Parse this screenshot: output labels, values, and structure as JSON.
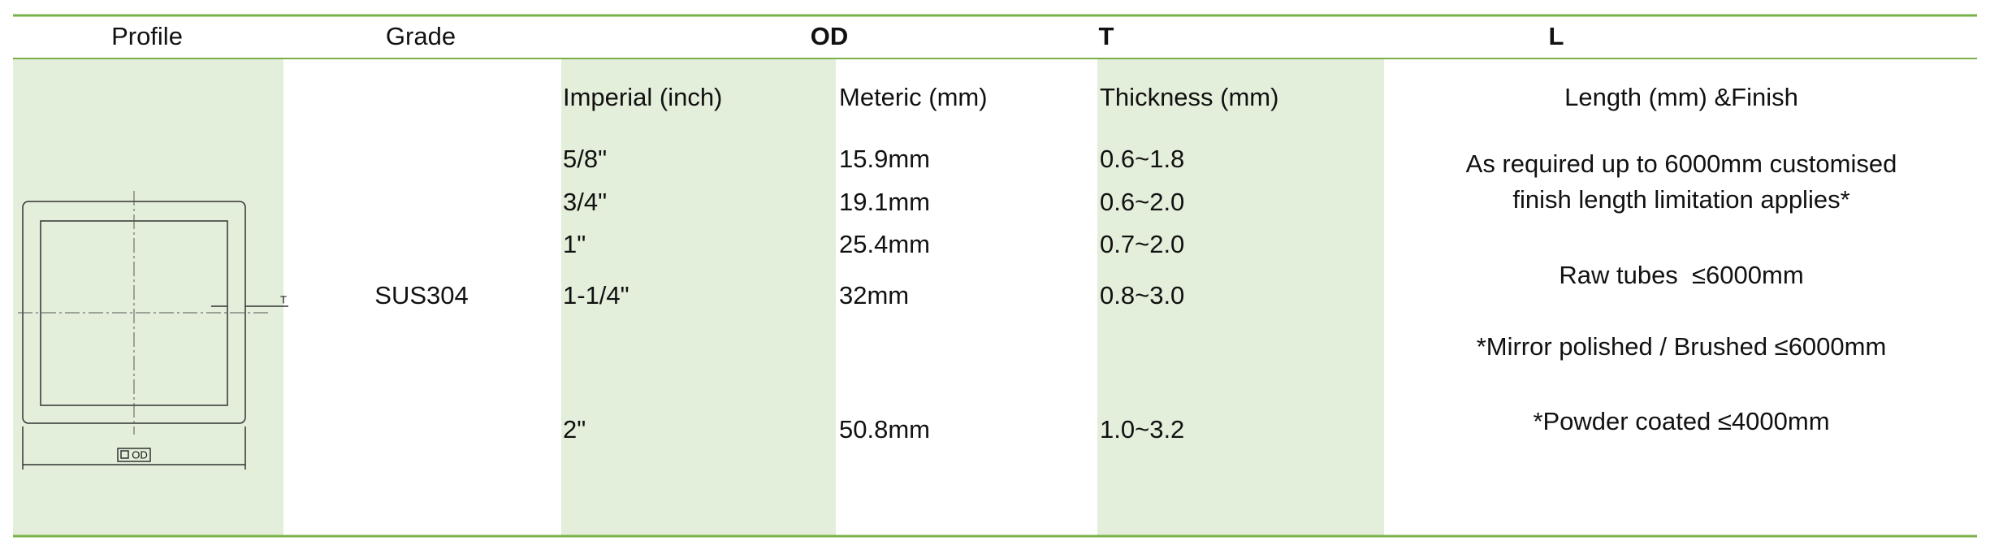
{
  "header": {
    "profile": "Profile",
    "grade": "Grade",
    "od": "OD",
    "t": "T",
    "l": "L"
  },
  "profile_drawing": {
    "t_label": "T",
    "od_label": "OD"
  },
  "grade": "SUS304",
  "subheaders": [
    "Imperial (inch)",
    "Meteric (mm)",
    "Thickness (mm)",
    "Length (mm) &Finish"
  ],
  "rows": [
    [
      "5/8\"",
      "15.9mm",
      "0.6~1.8"
    ],
    [
      "3/4\"",
      "19.1mm",
      "0.6~2.0"
    ],
    [
      "1\"",
      "25.4mm",
      "0.7~2.0"
    ],
    [
      "1-1/4\"",
      "32mm",
      "0.8~3.0"
    ],
    [
      "2\"",
      "50.8mm",
      "1.0~3.2"
    ]
  ],
  "length_notes": [
    "As required up to 6000mm customised",
    "finish length limitation applies*",
    "Raw tubes  ≤6000mm",
    "*Mirror polished / Brushed ≤6000mm",
    "*Powder coated ≤4000mm"
  ]
}
